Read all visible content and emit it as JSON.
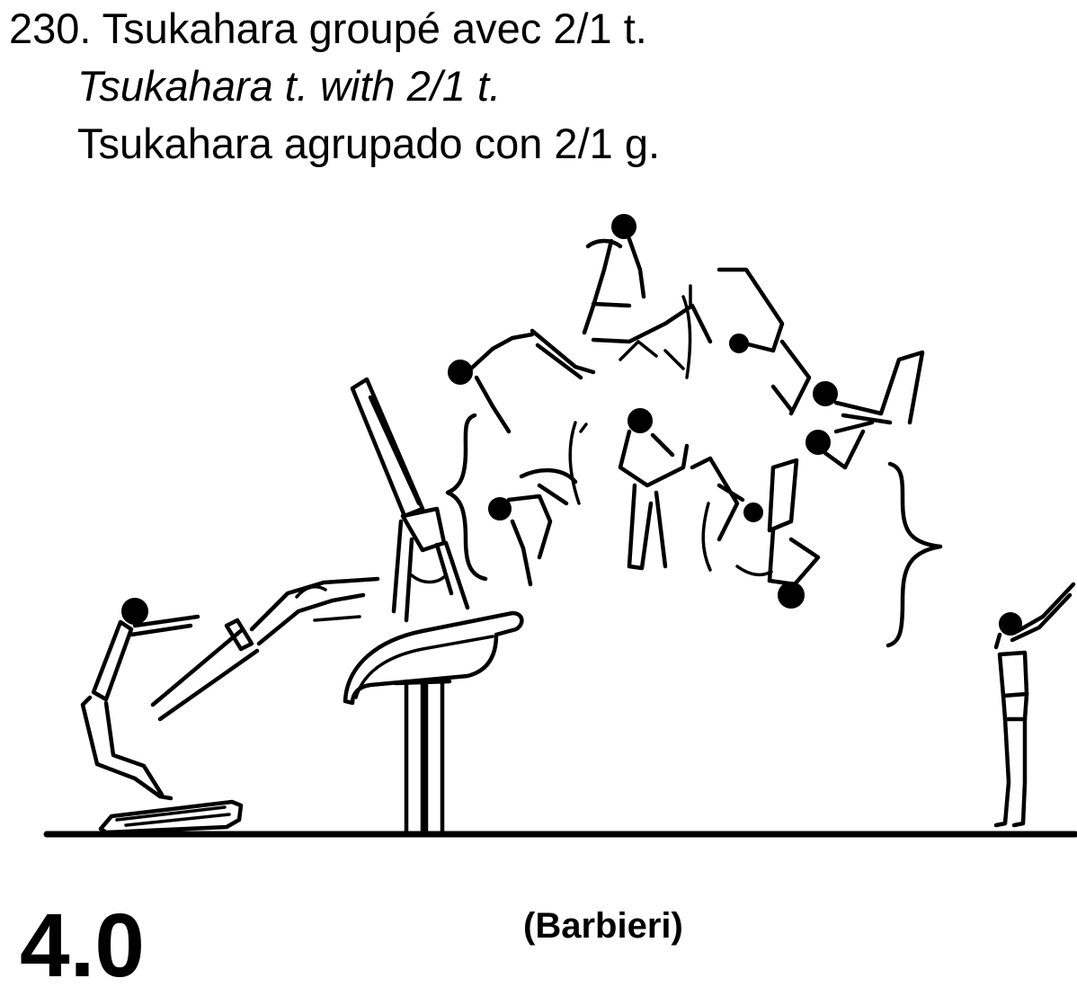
{
  "element": {
    "number_line": "230. Tsukahara groupé avec 2/1 t.",
    "english": "Tsukahara t. with 2/1 t.",
    "spanish": "Tsukahara agrupado con 2/1 g."
  },
  "difficulty_value": "4.0",
  "credit": "(Barbieri)",
  "illustration": {
    "figures": [
      "springboard",
      "vaulting-table",
      "gymnast-takeoff",
      "gymnast-handstand",
      "gymnast-tucked-salto",
      "gymnast-landing"
    ]
  }
}
